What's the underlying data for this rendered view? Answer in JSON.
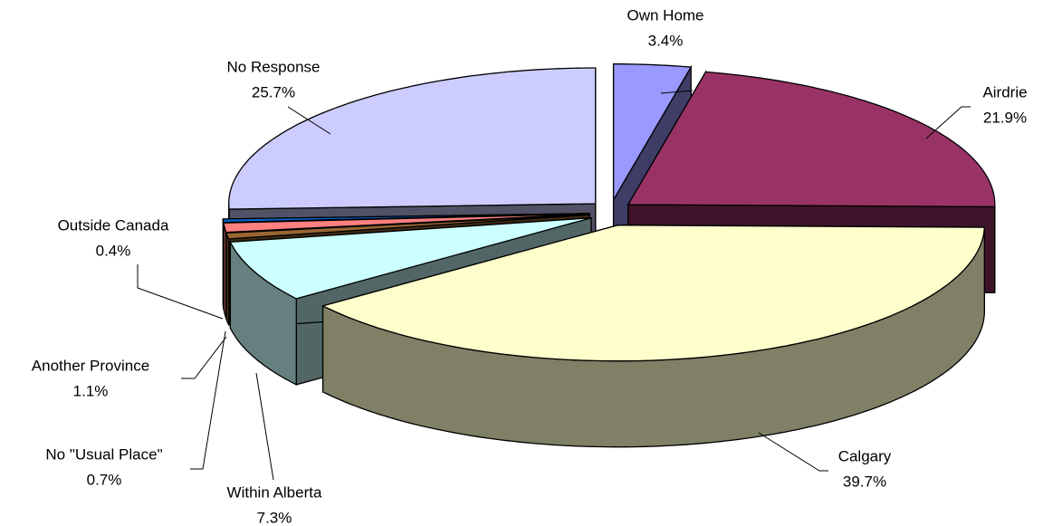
{
  "chart_data": {
    "type": "pie3d",
    "categories": [
      "Own Home",
      "Airdrie",
      "Calgary",
      "Within Alberta",
      "No \"Usual Place\"",
      "Another Province",
      "Outside Canada",
      "No Response"
    ],
    "values": [
      3.4,
      21.9,
      39.7,
      7.3,
      0.7,
      1.1,
      0.4,
      25.7
    ],
    "value_labels": [
      "3.4%",
      "21.9%",
      "39.7%",
      "7.3%",
      "0.7%",
      "1.1%",
      "0.4%",
      "25.7%"
    ],
    "colors": [
      "#9999ff",
      "#993366",
      "#ffffcc",
      "#ccffff",
      "#996633",
      "#ff8080",
      "#0066cc",
      "#ccccff"
    ]
  }
}
